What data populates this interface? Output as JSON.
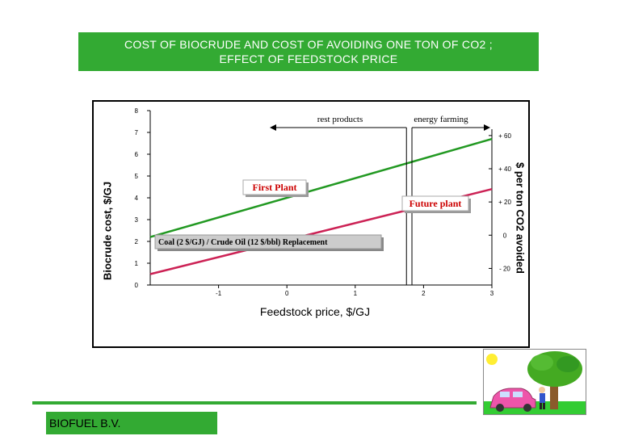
{
  "title": {
    "line1": "COST OF BIOCRUDE AND COST OF AVOIDING ONE TON OF CO2 ;",
    "line2": "EFFECT OF FEEDSTOCK PRICE"
  },
  "footer": {
    "company": "BIOFUEL B.V."
  },
  "colors": {
    "title_bg": "#33aa33",
    "first_plant_line": "#229922",
    "future_plant_line": "#cc2255",
    "label_text": "#cc0000"
  },
  "chart_data": {
    "type": "line",
    "xlabel": "Feedstock price, $/GJ",
    "ylabel": "Biocrude cost, $/GJ",
    "y2label": "$ per ton CO2 avoided",
    "xlim": [
      -2,
      3
    ],
    "ylim": [
      0,
      8
    ],
    "y2lim": [
      -30,
      75
    ],
    "x_ticks": [
      -1,
      0,
      1,
      2,
      3
    ],
    "x_tick_labels": [
      "-1",
      "0",
      "1",
      "2",
      "3"
    ],
    "y_ticks": [
      0,
      1,
      2,
      3,
      4,
      5,
      6,
      7,
      8
    ],
    "y_tick_labels": [
      "0",
      "1",
      "2",
      "3",
      "4",
      "5",
      "6",
      "7",
      "8"
    ],
    "y2_ticks": [
      -20,
      0,
      20,
      40,
      60
    ],
    "y2_tick_labels": [
      "- 20",
      "0",
      "+ 20",
      "+ 40",
      "+ 60"
    ],
    "series": [
      {
        "name": "First Plant",
        "x": [
          -2,
          3
        ],
        "y": [
          2.2,
          6.7
        ]
      },
      {
        "name": "Future plant",
        "x": [
          -2,
          3
        ],
        "y": [
          0.5,
          4.4
        ]
      }
    ],
    "annotations": {
      "rest_products": "rest products",
      "energy_farming": "energy farming",
      "coal_box": "Coal (2 $/GJ) / Crude Oil (12 $/bbl) Replacement",
      "divider_x": [
        1.75,
        1.83
      ]
    }
  }
}
